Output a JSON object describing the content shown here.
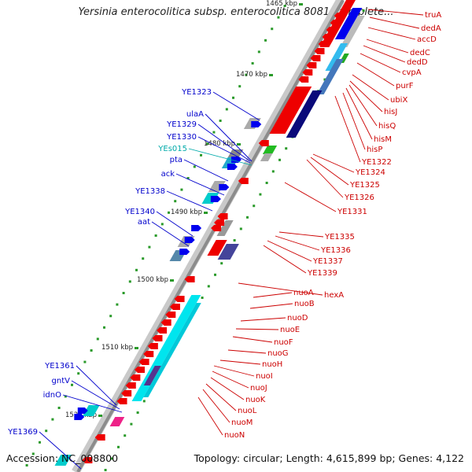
{
  "header": {
    "title": "Yersinia enterocolitica subsp. enterocolitica 8081, complete..."
  },
  "footer": {
    "accession_label": "Accession:",
    "accession": "NC_008800",
    "topology_text": "Topology: circular; Length: 4,615,899 bp; Genes: 4,122"
  },
  "colors": {
    "forward_gene": "#0000ee",
    "reverse_gene": "#ee0000",
    "trna": "#00dddd",
    "label_red": "#cc0000",
    "label_blue": "#0000cc",
    "label_cyan": "#00aaaa",
    "kbp_dot": "#2a9a2a",
    "backbone": "#999999"
  },
  "scale_labels": [
    {
      "text": "1465 kbp",
      "kb": 1465
    },
    {
      "text": "1470 kbp",
      "kb": 1470
    },
    {
      "text": "1480 kbp",
      "kb": 1480
    },
    {
      "text": "1490 kbp",
      "kb": 1490
    },
    {
      "text": "1500 kbp",
      "kb": 1500
    },
    {
      "text": "1510 kbp",
      "kb": 1510
    },
    {
      "text": "1520 kbp",
      "kb": 1520
    }
  ],
  "gene_labels_left": [
    {
      "text": "YE1323",
      "color": "blue"
    },
    {
      "text": "ulaA",
      "color": "blue"
    },
    {
      "text": "YE1329",
      "color": "blue"
    },
    {
      "text": "YE1330",
      "color": "blue"
    },
    {
      "text": "YEs015",
      "color": "cyan"
    },
    {
      "text": "pta",
      "color": "blue"
    },
    {
      "text": "ack",
      "color": "blue"
    },
    {
      "text": "YE1338",
      "color": "blue"
    },
    {
      "text": "YE1340",
      "color": "blue"
    },
    {
      "text": "aat",
      "color": "blue"
    },
    {
      "text": "YE1361",
      "color": "blue"
    },
    {
      "text": "gntV",
      "color": "blue"
    },
    {
      "text": "idnO",
      "color": "blue"
    },
    {
      "text": "YE1369",
      "color": "blue"
    }
  ],
  "gene_labels_right": [
    {
      "text": "truA"
    },
    {
      "text": "dedA"
    },
    {
      "text": "accD"
    },
    {
      "text": "dedC"
    },
    {
      "text": "dedD"
    },
    {
      "text": "cvpA"
    },
    {
      "text": "purF"
    },
    {
      "text": "ubiX"
    },
    {
      "text": "hisJ"
    },
    {
      "text": "hisQ"
    },
    {
      "text": "hisM"
    },
    {
      "text": "hisP"
    },
    {
      "text": "YE1322"
    },
    {
      "text": "YE1324"
    },
    {
      "text": "YE1325"
    },
    {
      "text": "YE1326"
    },
    {
      "text": "YE1331"
    },
    {
      "text": "YE1335"
    },
    {
      "text": "YE1336"
    },
    {
      "text": "YE1337"
    },
    {
      "text": "YE1339"
    },
    {
      "text": "nuoA"
    },
    {
      "text": "hexA"
    },
    {
      "text": "nuoB"
    },
    {
      "text": "nuoD"
    },
    {
      "text": "nuoE"
    },
    {
      "text": "nuoF"
    },
    {
      "text": "nuoG"
    },
    {
      "text": "nuoH"
    },
    {
      "text": "nuoI"
    },
    {
      "text": "nuoJ"
    },
    {
      "text": "nuoK"
    },
    {
      "text": "nuoL"
    },
    {
      "text": "nuoM"
    },
    {
      "text": "nuoN"
    }
  ]
}
